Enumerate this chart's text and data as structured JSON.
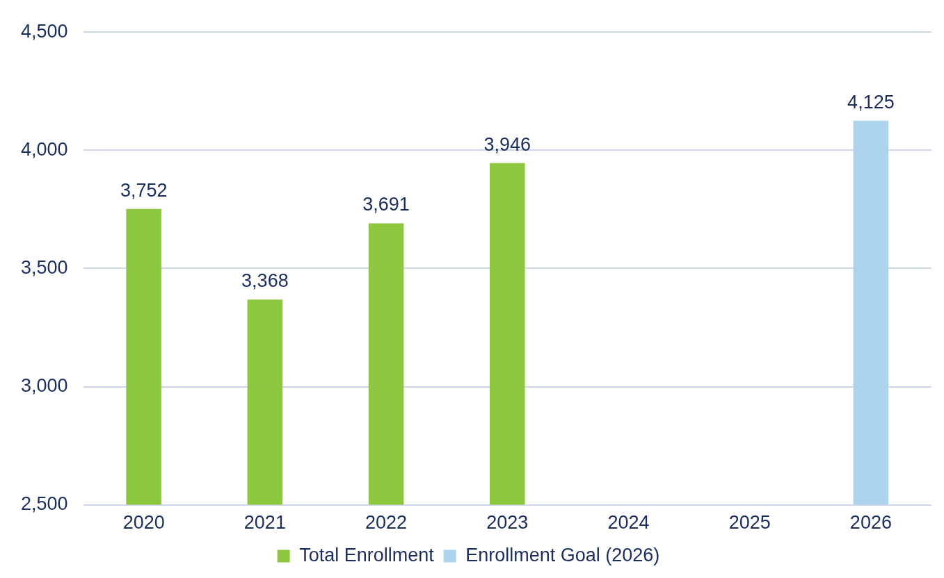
{
  "chart_data": {
    "type": "bar",
    "categories": [
      "2020",
      "2021",
      "2022",
      "2023",
      "2024",
      "2025",
      "2026"
    ],
    "series": [
      {
        "name": "Total Enrollment",
        "color": "#8dc63f",
        "values": [
          3752,
          3368,
          3691,
          3946,
          null,
          null,
          null
        ],
        "value_labels": [
          "3,752",
          "3,368",
          "3,691",
          "3,946",
          null,
          null,
          null
        ]
      },
      {
        "name": "Enrollment Goal (2026)",
        "color": "#aed3ed",
        "values": [
          null,
          null,
          null,
          null,
          null,
          null,
          4125
        ],
        "value_labels": [
          null,
          null,
          null,
          null,
          null,
          null,
          "4,125"
        ]
      }
    ],
    "ylim": [
      2500,
      4500
    ],
    "yticks": [
      {
        "value": 2500,
        "label": "2,500"
      },
      {
        "value": 3000,
        "label": "3,000"
      },
      {
        "value": 3500,
        "label": "3,500"
      },
      {
        "value": 4000,
        "label": "4,000"
      },
      {
        "value": 4500,
        "label": "4,500"
      }
    ],
    "grid": "y",
    "legend": "bottom"
  }
}
